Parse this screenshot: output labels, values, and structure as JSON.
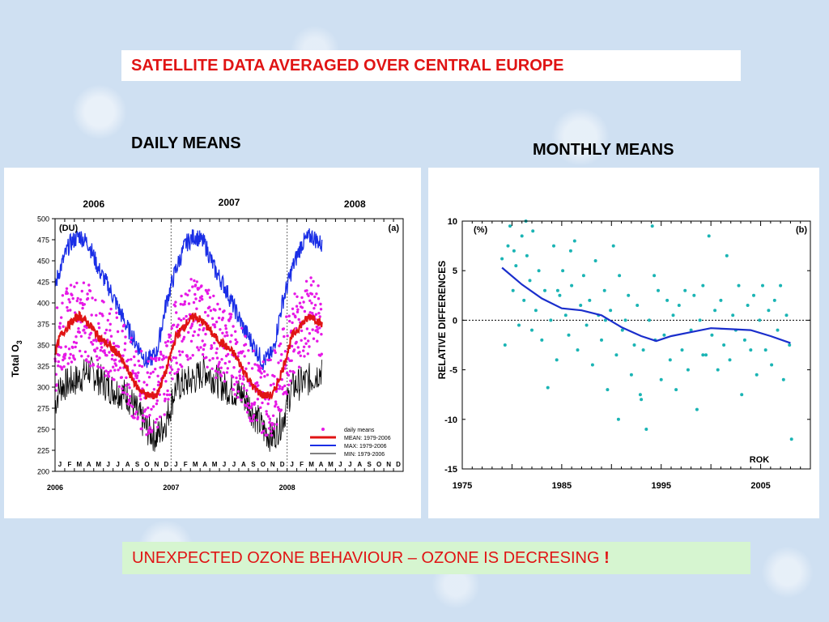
{
  "header": {
    "title": "SATELLITE DATA AVERAGED  OVER  CENTRAL EUROPE"
  },
  "left_heading": "DAILY MEANS",
  "right_heading": "MONTHLY MEANS",
  "footer": {
    "text": "UNEXPECTED OZONE BEHAVIOUR – OZONE IS DECRESING",
    "emphasis": "!"
  },
  "chart_data": [
    {
      "type": "line",
      "panel_label": "(a)",
      "unit_label": "(DU)",
      "ylabel_main": "Total O",
      "ylabel_sub": "3",
      "ylim": [
        200,
        500
      ],
      "yticks": [
        200,
        225,
        250,
        275,
        300,
        325,
        350,
        375,
        400,
        425,
        450,
        475,
        500
      ],
      "year_labels_top": [
        "2006",
        "2007",
        "2008"
      ],
      "year_labels_bottom": [
        "2006",
        "2007",
        "2008"
      ],
      "months": [
        "J",
        "F",
        "M",
        "A",
        "M",
        "J",
        "J",
        "A",
        "S",
        "O",
        "N",
        "D",
        "J",
        "F",
        "M",
        "A",
        "M",
        "J",
        "J",
        "A",
        "S",
        "O",
        "N",
        "D",
        "J",
        "F",
        "M",
        "A",
        "M",
        "J",
        "J",
        "A",
        "S",
        "O",
        "N",
        "D"
      ],
      "x_range_months": [
        0,
        36
      ],
      "data_extent_months": 27.6,
      "legend": [
        "daily means",
        "MEAN: 1979-2006",
        "MAX: 1979-2006",
        "MIN: 1979-2006"
      ],
      "colors": {
        "daily": "#e619e6",
        "mean": "#e01414",
        "max": "#1a2ee6",
        "min": "#000000"
      },
      "climatology_monthly_DU": {
        "mean": [
          360,
          375,
          385,
          375,
          360,
          350,
          340,
          320,
          300,
          290,
          290,
          320
        ],
        "max": [
          440,
          470,
          480,
          470,
          440,
          420,
          395,
          370,
          350,
          330,
          340,
          400
        ],
        "min": [
          300,
          305,
          310,
          320,
          310,
          300,
          295,
          290,
          270,
          250,
          240,
          260
        ]
      }
    },
    {
      "type": "scatter",
      "panel_label": "(b)",
      "unit_label": "(%)",
      "ylabel": "RELATIVE DIFFERENCES",
      "annotation": "ROK",
      "xlim": [
        1975,
        2010
      ],
      "ylim": [
        -15,
        10
      ],
      "xticks": [
        1975,
        1985,
        1995,
        2005
      ],
      "yticks": [
        10,
        5,
        0,
        -5,
        -10,
        -15
      ],
      "colors": {
        "points": "#1ab4b4",
        "trend": "#1a2ecc"
      },
      "trend": {
        "x": [
          1979,
          1981,
          1983,
          1985,
          1987,
          1989,
          1991,
          1993,
          1994.5,
          1996,
          1998,
          2000,
          2002,
          2004,
          2006,
          2008
        ],
        "y": [
          5.3,
          3.6,
          2.2,
          1.2,
          1.0,
          0.5,
          -0.7,
          -1.6,
          -2.1,
          -1.6,
          -1.2,
          -0.8,
          -0.9,
          -1.0,
          -1.6,
          -2.3
        ]
      },
      "points": {
        "x": [
          1979.0,
          1979.3,
          1979.6,
          1979.8,
          1980.1,
          1980.4,
          1980.7,
          1981.0,
          1981.2,
          1981.5,
          1981.8,
          1982.1,
          1982.4,
          1982.7,
          1983.0,
          1983.3,
          1983.6,
          1983.9,
          1984.2,
          1984.5,
          1984.8,
          1985.1,
          1985.4,
          1985.7,
          1986.0,
          1986.3,
          1986.6,
          1986.9,
          1987.2,
          1987.5,
          1987.8,
          1988.1,
          1988.4,
          1988.7,
          1989.0,
          1989.3,
          1989.6,
          1989.9,
          1990.2,
          1990.5,
          1990.8,
          1991.1,
          1991.4,
          1991.7,
          1992.0,
          1992.3,
          1992.6,
          1992.9,
          1993.2,
          1993.5,
          1993.8,
          1994.1,
          1994.4,
          1994.7,
          1995.0,
          1995.3,
          1995.6,
          1995.9,
          1996.2,
          1996.5,
          1996.8,
          1997.1,
          1997.4,
          1997.7,
          1998.0,
          1998.3,
          1998.6,
          1998.9,
          1999.2,
          1999.5,
          1999.8,
          2000.1,
          2000.4,
          2000.7,
          2001.0,
          2001.3,
          2001.6,
          2001.9,
          2002.2,
          2002.5,
          2002.8,
          2003.1,
          2003.4,
          2003.7,
          2004.0,
          2004.3,
          2004.6,
          2004.9,
          2005.2,
          2005.5,
          2005.8,
          2006.1,
          2006.4,
          2006.7,
          2007.0,
          2007.3,
          2007.6,
          2007.9,
          1980.2,
          1981.4,
          1982.0,
          1985.9,
          1990.7,
          1994.3,
          1999.2,
          1984.6,
          1989.4,
          1993.0,
          2008.1
        ],
        "y": [
          6.2,
          -2.5,
          7.5,
          9.5,
          3.0,
          5.5,
          -0.5,
          8.5,
          2.0,
          6.5,
          4.0,
          9.0,
          1.0,
          5.0,
          -2.0,
          3.0,
          -6.8,
          0.0,
          7.5,
          -4.0,
          2.5,
          5.0,
          0.5,
          -1.5,
          3.5,
          8.0,
          -3.0,
          1.5,
          4.5,
          -0.5,
          2.0,
          -4.5,
          6.0,
          0.5,
          -2.0,
          3.0,
          -7.0,
          1.0,
          7.5,
          -3.5,
          4.5,
          -1.0,
          0.0,
          2.5,
          -5.5,
          -2.5,
          1.5,
          -7.5,
          -3.0,
          -11.0,
          0.0,
          9.5,
          -2.0,
          3.0,
          -6.0,
          -1.5,
          2.0,
          -4.0,
          0.5,
          -7.0,
          1.5,
          -3.0,
          3.0,
          -5.0,
          -1.0,
          2.5,
          -9.0,
          0.0,
          3.5,
          -3.5,
          8.5,
          -1.5,
          1.0,
          -5.0,
          2.0,
          -2.5,
          6.5,
          -4.0,
          0.5,
          -1.0,
          3.5,
          -7.5,
          -2.0,
          1.5,
          -3.0,
          2.5,
          -5.5,
          0.0,
          3.5,
          -3.0,
          1.0,
          -4.5,
          2.0,
          -1.0,
          3.5,
          -6.0,
          0.5,
          -2.5,
          7.0,
          10.0,
          -1.0,
          7.0,
          -10.0,
          4.5,
          -3.5,
          3.0,
          0.0,
          -8.0,
          -12.0
        ]
      }
    }
  ]
}
